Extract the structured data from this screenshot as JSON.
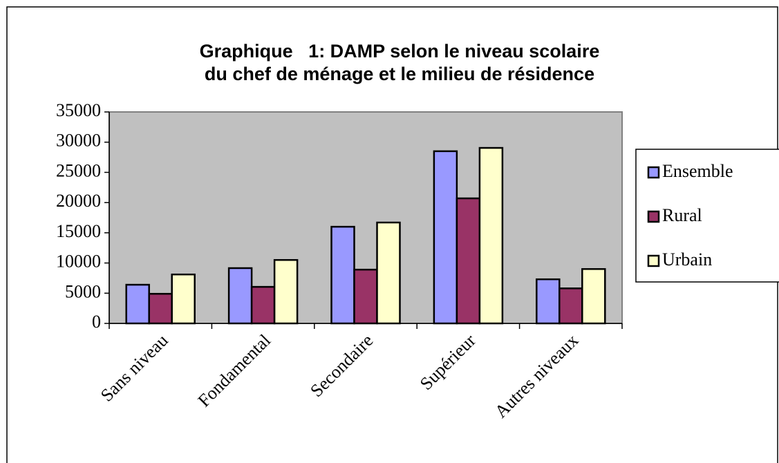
{
  "chart_data": {
    "type": "bar",
    "title": [
      "Graphique   1: DAMP selon le niveau scolaire",
      "du chef de ménage et le milieu de résidence"
    ],
    "categories": [
      "Sans niveau",
      "Fondamental",
      "Secondaire",
      "Supérieur",
      "Autres niveaux"
    ],
    "series": [
      {
        "name": "Ensemble",
        "color": "#9999ff",
        "values": [
          6400,
          9150,
          16000,
          28500,
          7300
        ]
      },
      {
        "name": "Rural",
        "color": "#993366",
        "values": [
          4900,
          6050,
          8900,
          20700,
          5800
        ]
      },
      {
        "name": "Urbain",
        "color": "#ffffcc",
        "values": [
          8100,
          10500,
          16700,
          29050,
          9000
        ]
      }
    ],
    "ylim": [
      0,
      35000
    ],
    "yticks": [
      0,
      5000,
      10000,
      15000,
      20000,
      25000,
      30000,
      35000
    ],
    "grid": false,
    "legend": "right"
  }
}
